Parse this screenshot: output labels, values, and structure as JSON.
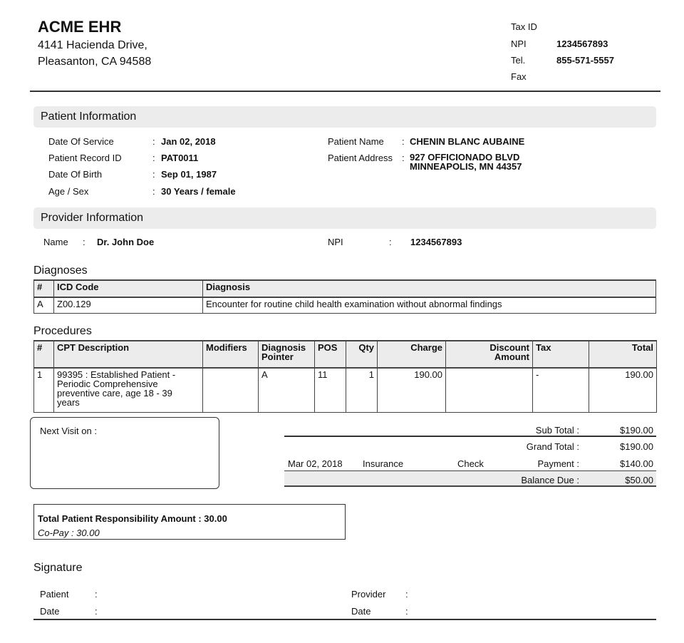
{
  "header": {
    "org_name": "ACME EHR",
    "address_line1": "4141 Hacienda Drive,",
    "address_line2": "Pleasanton, CA 94588",
    "ids": [
      {
        "label": "Tax ID",
        "value": ""
      },
      {
        "label": "NPI",
        "value": "1234567893"
      },
      {
        "label": "Tel.",
        "value": "855-571-5557"
      },
      {
        "label": "Fax",
        "value": ""
      }
    ]
  },
  "patient": {
    "title": "Patient Information",
    "left": [
      {
        "label": "Date Of Service",
        "value": "Jan 02, 2018"
      },
      {
        "label": "Patient Record ID",
        "value": "PAT0011"
      },
      {
        "label": "Date Of Birth",
        "value": "Sep 01, 1987"
      },
      {
        "label": "Age / Sex",
        "value": "30 Years / female"
      }
    ],
    "name_label": "Patient Name",
    "name": "CHENIN BLANC AUBAINE",
    "address_label": "Patient Address",
    "address_line1": "927 OFFICIONADO BLVD",
    "address_line2": "MINNEAPOLIS, MN 44357"
  },
  "provider": {
    "title": "Provider Information",
    "name_label": "Name",
    "name": "Dr. John Doe",
    "npi_label": "NPI",
    "npi": "1234567893"
  },
  "colon": ":",
  "diagnoses": {
    "title": "Diagnoses",
    "headers": [
      "#",
      "ICD Code",
      "Diagnosis"
    ],
    "rows": [
      [
        "A",
        "Z00.129",
        "Encounter for routine child health examination without abnormal findings"
      ]
    ]
  },
  "procedures": {
    "title": "Procedures",
    "headers": [
      "#",
      "CPT Description",
      "Modifiers",
      "Diagnosis Pointer",
      "POS",
      "Qty",
      "Charge",
      "Discount Amount",
      "Tax",
      "Total"
    ],
    "rows": [
      [
        "1",
        "99395 : Established Patient - Periodic Comprehensive preventive care, age 18 - 39 years",
        "",
        "A",
        "11",
        "1",
        "190.00",
        "",
        "-",
        "190.00"
      ]
    ]
  },
  "next_visit_label": "Next Visit on :",
  "totals": {
    "sub_total_label": "Sub Total :",
    "sub_total": "$190.00",
    "grand_total_label": "Grand Total :",
    "grand_total": "$190.00",
    "payment_date": "Mar 02, 2018",
    "payment_source": "Insurance",
    "payment_method": "Check",
    "payment_label": "Payment :",
    "payment": "$140.00",
    "balance_label": "Balance Due :",
    "balance": "$50.00"
  },
  "responsibility": {
    "total": "Total Patient Responsibility Amount : 30.00",
    "copay": "Co-Pay : 30.00"
  },
  "signature": {
    "title": "Signature",
    "patient_label": "Patient",
    "provider_label": "Provider",
    "date_label": "Date"
  }
}
